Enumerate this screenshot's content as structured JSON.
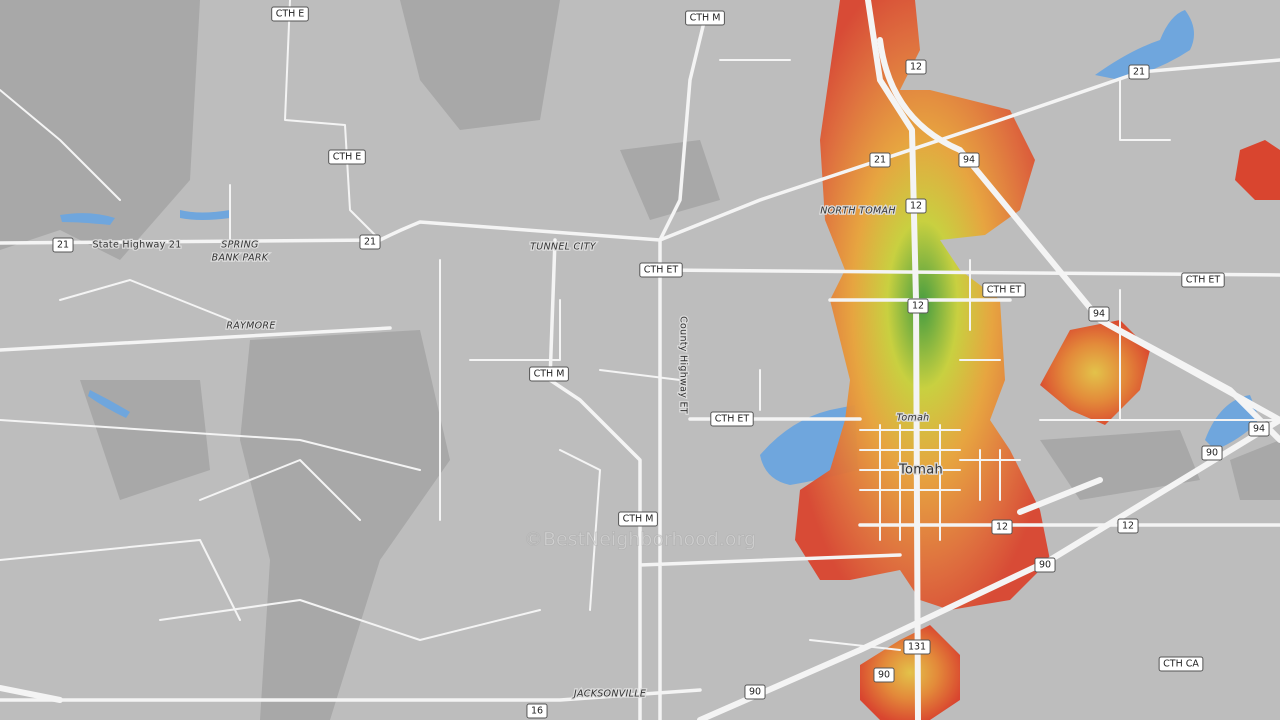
{
  "shields": [
    "CTH E",
    "CTH M",
    "12",
    "21",
    "CTH E",
    "21",
    "94",
    "12",
    "21",
    "21",
    "CTH ET",
    "CTH ET",
    "CTH ET",
    "12",
    "94",
    "CTH M",
    "CTH ET",
    "94",
    "90",
    "CTH M",
    "12",
    "12",
    "90",
    "131",
    "90",
    "CTH CA",
    "90",
    "16"
  ],
  "places": {
    "state_highway_21": "State Highway 21",
    "spring_bank_park": [
      "SPRING",
      "BANK PARK"
    ],
    "tunnel_city": "TUNNEL CITY",
    "raymore": "RAYMORE",
    "north_tomah": "NORTH TOMAH",
    "county_highway_et": "County Highway ET",
    "tomah_small": "Tomah",
    "tomah": "Tomah",
    "jacksonville": "JACKSONVILLE"
  },
  "watermark": "©BestNeighborhood.org"
}
